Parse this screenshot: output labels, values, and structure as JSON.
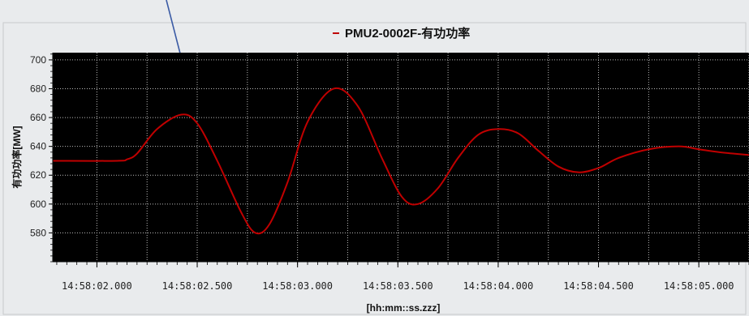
{
  "chart_data": {
    "type": "line",
    "title": "PMU2-0002F-有功功率",
    "xlabel": "[hh:mm::ss.zzz]",
    "ylabel": "有功功率[MW]",
    "legend_position": "top-center",
    "grid": true,
    "background": "#000000",
    "gridline_color": "#bbbbbb",
    "series_color": "#c00000",
    "ylim": [
      560,
      705
    ],
    "y_ticks": [
      580,
      600,
      620,
      640,
      660,
      680,
      700
    ],
    "x_tick_labels": [
      "14:58:02.000",
      "14:58:02.500",
      "14:58:03.000",
      "14:58:03.500",
      "14:58:04.000",
      "14:58:04.500",
      "14:58:05.000"
    ],
    "x_tick_seconds": [
      2.0,
      2.5,
      3.0,
      3.5,
      4.0,
      4.5,
      5.0
    ],
    "xlim_seconds": [
      1.78,
      5.25
    ],
    "series": [
      {
        "name": "PMU2-0002F-有功功率",
        "points": [
          [
            1.78,
            630
          ],
          [
            2.1,
            630
          ],
          [
            2.15,
            631
          ],
          [
            2.2,
            635
          ],
          [
            2.3,
            652
          ],
          [
            2.42,
            662
          ],
          [
            2.5,
            656
          ],
          [
            2.6,
            630
          ],
          [
            2.72,
            594
          ],
          [
            2.79,
            580
          ],
          [
            2.86,
            586
          ],
          [
            2.95,
            615
          ],
          [
            3.05,
            657
          ],
          [
            3.18,
            680
          ],
          [
            3.3,
            668
          ],
          [
            3.42,
            632
          ],
          [
            3.52,
            605
          ],
          [
            3.6,
            600
          ],
          [
            3.7,
            611
          ],
          [
            3.8,
            632
          ],
          [
            3.9,
            648
          ],
          [
            4.0,
            652
          ],
          [
            4.1,
            649
          ],
          [
            4.2,
            637
          ],
          [
            4.3,
            626
          ],
          [
            4.4,
            622
          ],
          [
            4.5,
            625
          ],
          [
            4.6,
            632
          ],
          [
            4.75,
            638
          ],
          [
            4.9,
            640
          ],
          [
            5.0,
            638
          ],
          [
            5.1,
            636
          ],
          [
            5.25,
            634
          ]
        ]
      }
    ]
  },
  "annotation": {
    "arrow_color": "#3b5ba5"
  }
}
